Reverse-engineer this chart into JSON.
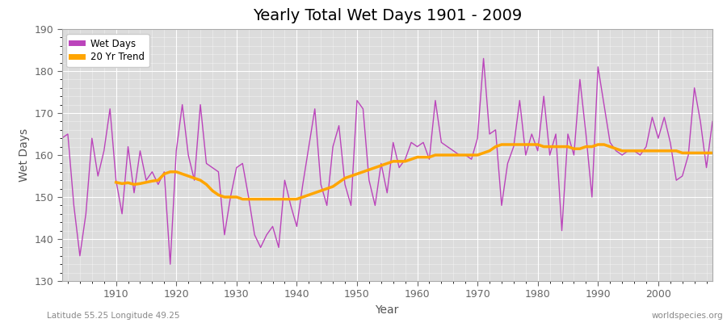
{
  "title": "Yearly Total Wet Days 1901 - 2009",
  "xlabel": "Year",
  "ylabel": "Wet Days",
  "lat_lon_label": "Latitude 55.25 Longitude 49.25",
  "watermark": "worldspecies.org",
  "ylim": [
    130,
    190
  ],
  "xlim": [
    1901,
    2009
  ],
  "yticks": [
    130,
    140,
    150,
    160,
    170,
    180,
    190
  ],
  "xticks": [
    1910,
    1920,
    1930,
    1940,
    1950,
    1960,
    1970,
    1980,
    1990,
    2000
  ],
  "wet_days_color": "#BB44BB",
  "trend_color": "#FFA500",
  "background_color": "#DCDCDC",
  "legend_wet_days": "Wet Days",
  "legend_trend": "20 Yr Trend",
  "years": [
    1901,
    1902,
    1903,
    1904,
    1905,
    1906,
    1907,
    1908,
    1909,
    1910,
    1911,
    1912,
    1913,
    1914,
    1915,
    1916,
    1917,
    1918,
    1919,
    1920,
    1921,
    1922,
    1923,
    1924,
    1925,
    1926,
    1927,
    1928,
    1929,
    1930,
    1931,
    1932,
    1933,
    1934,
    1935,
    1936,
    1937,
    1938,
    1939,
    1940,
    1941,
    1942,
    1943,
    1944,
    1945,
    1946,
    1947,
    1948,
    1949,
    1950,
    1951,
    1952,
    1953,
    1954,
    1955,
    1956,
    1957,
    1958,
    1959,
    1960,
    1961,
    1962,
    1963,
    1964,
    1965,
    1966,
    1967,
    1968,
    1969,
    1970,
    1971,
    1972,
    1973,
    1974,
    1975,
    1976,
    1977,
    1978,
    1979,
    1980,
    1981,
    1982,
    1983,
    1984,
    1985,
    1986,
    1987,
    1988,
    1989,
    1990,
    1991,
    1992,
    1993,
    1994,
    1995,
    1996,
    1997,
    1998,
    1999,
    2000,
    2001,
    2002,
    2003,
    2004,
    2005,
    2006,
    2007,
    2008,
    2009
  ],
  "wet_days": [
    164,
    165,
    148,
    136,
    146,
    164,
    155,
    161,
    171,
    154,
    146,
    162,
    151,
    161,
    154,
    156,
    153,
    156,
    134,
    161,
    172,
    160,
    154,
    172,
    158,
    157,
    156,
    141,
    150,
    157,
    158,
    150,
    141,
    138,
    141,
    143,
    138,
    154,
    148,
    143,
    153,
    162,
    171,
    153,
    148,
    162,
    167,
    153,
    148,
    173,
    171,
    154,
    148,
    158,
    151,
    163,
    157,
    159,
    163,
    162,
    163,
    159,
    173,
    163,
    162,
    161,
    160,
    160,
    159,
    164,
    183,
    165,
    166,
    148,
    158,
    162,
    173,
    160,
    165,
    161,
    174,
    160,
    165,
    142,
    165,
    160,
    178,
    165,
    150,
    181,
    172,
    163,
    161,
    160,
    161,
    161,
    160,
    162,
    169,
    164,
    169,
    163,
    154,
    155,
    160,
    176,
    168,
    157,
    168
  ],
  "trend_years": [
    1910,
    1911,
    1912,
    1913,
    1914,
    1915,
    1916,
    1917,
    1918,
    1919,
    1920,
    1921,
    1922,
    1923,
    1924,
    1925,
    1926,
    1927,
    1928,
    1929,
    1930,
    1931,
    1932,
    1933,
    1934,
    1935,
    1936,
    1937,
    1938,
    1939,
    1940,
    1941,
    1942,
    1943,
    1944,
    1945,
    1946,
    1947,
    1948,
    1949,
    1950,
    1951,
    1952,
    1953,
    1954,
    1955,
    1956,
    1957,
    1958,
    1959,
    1960,
    1961,
    1962,
    1963,
    1964,
    1965,
    1966,
    1967,
    1968,
    1969,
    1970,
    1971,
    1972,
    1973,
    1974,
    1975,
    1976,
    1977,
    1978,
    1979,
    1980,
    1981,
    1982,
    1983,
    1984,
    1985,
    1986,
    1987,
    1988,
    1989,
    1990,
    1991,
    1992,
    1993,
    1994,
    1995,
    1996,
    1997,
    1998,
    1999,
    2000,
    2001,
    2002,
    2003,
    2004,
    2005,
    2006,
    2007,
    2008,
    2009
  ],
  "trend_values": [
    153.5,
    153.2,
    153.4,
    153.0,
    153.2,
    153.5,
    153.8,
    154.0,
    155.5,
    156.0,
    156.0,
    155.5,
    155.0,
    154.5,
    154.0,
    153.0,
    151.5,
    150.5,
    150.0,
    150.0,
    150.0,
    149.5,
    149.5,
    149.5,
    149.5,
    149.5,
    149.5,
    149.5,
    149.5,
    149.5,
    149.5,
    150.0,
    150.5,
    151.0,
    151.5,
    152.0,
    152.5,
    153.5,
    154.5,
    155.0,
    155.5,
    156.0,
    156.5,
    157.0,
    157.5,
    158.0,
    158.5,
    158.5,
    158.5,
    159.0,
    159.5,
    159.5,
    159.5,
    160.0,
    160.0,
    160.0,
    160.0,
    160.0,
    160.0,
    160.0,
    160.0,
    160.5,
    161.0,
    162.0,
    162.5,
    162.5,
    162.5,
    162.5,
    162.5,
    162.5,
    162.5,
    162.0,
    162.0,
    162.0,
    162.0,
    162.0,
    161.5,
    161.5,
    162.0,
    162.0,
    162.5,
    162.5,
    162.0,
    161.5,
    161.0,
    161.0,
    161.0,
    161.0,
    161.0,
    161.0,
    161.0,
    161.0,
    161.0,
    161.0,
    160.5,
    160.5,
    160.5,
    160.5,
    160.5,
    160.5
  ]
}
